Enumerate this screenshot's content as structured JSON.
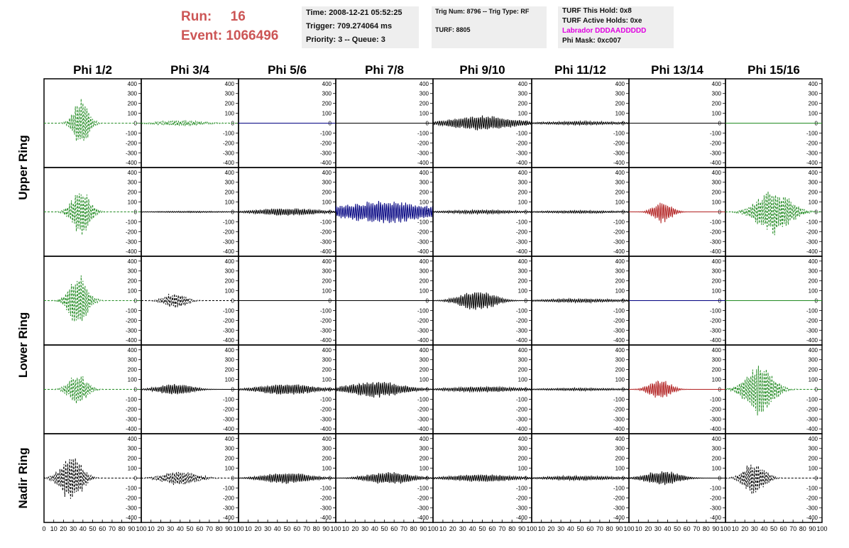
{
  "header": {
    "run_label": "Run:",
    "run_value": "16",
    "event_label": "Event:",
    "event_value": "1066496",
    "time": "Time: 2008-12-21 05:52:25",
    "trigger": "Trigger: 709.274064 ms",
    "priority": "Priority: 3 -- Queue: 3",
    "trig_num": "Trig Num: 8796 -- Trig Type: RF",
    "turf": "TURF: 8805",
    "turf_hold": "TURF This Hold: 0x8",
    "turf_active": "TURF Active Holds: 0xe",
    "labrador": "Labrador DDDAADDDDD",
    "phi_mask": "Phi Mask: 0xc007",
    "labrador_color": "#e000e0",
    "run_color": "#cc5555"
  },
  "columns": [
    "Phi 1/2",
    "Phi 3/4",
    "Phi 5/6",
    "Phi 7/8",
    "Phi 9/10",
    "Phi 11/12",
    "Phi 13/14",
    "Phi 15/16"
  ],
  "ring_labels": [
    "Upper Ring",
    "Lower Ring",
    "Nadir Ring"
  ],
  "chart_data": {
    "type": "line",
    "title": "",
    "xlim": [
      0,
      100
    ],
    "ylim": [
      -420,
      420
    ],
    "x_ticks": [
      "0",
      "10",
      "20",
      "30",
      "40",
      "50",
      "60",
      "70",
      "80",
      "90",
      "100"
    ],
    "y_ticks": [
      "400",
      "300",
      "200",
      "100",
      "0",
      "-100",
      "-200",
      "-300",
      "-400"
    ],
    "rows": [
      {
        "ring": "Upper Ring",
        "panels": [
          {
            "color": "#228b22",
            "dashed": true,
            "amp": 260,
            "center": 38,
            "width": 10
          },
          {
            "color": "#228b22",
            "dashed": true,
            "amp": 30,
            "center": 40,
            "width": 30
          },
          {
            "color": "#000080",
            "dashed": false,
            "amp": 0,
            "center": 50,
            "width": 30
          },
          {
            "color": "#000000",
            "dashed": false,
            "amp": 0,
            "center": 50,
            "width": 30
          },
          {
            "color": "#000000",
            "dashed": false,
            "amp": 80,
            "center": 50,
            "width": 40
          },
          {
            "color": "#000000",
            "dashed": false,
            "amp": 20,
            "center": 50,
            "width": 50
          },
          {
            "color": "#000000",
            "dashed": false,
            "amp": 0,
            "center": 50,
            "width": 30
          },
          {
            "color": "#228b22",
            "dashed": false,
            "amp": 0,
            "center": 50,
            "width": 30
          }
        ]
      },
      {
        "ring": "Upper Ring",
        "panels": [
          {
            "color": "#228b22",
            "dashed": true,
            "amp": 250,
            "center": 38,
            "width": 12
          },
          {
            "color": "#000000",
            "dashed": false,
            "amp": 8,
            "center": 50,
            "width": 50
          },
          {
            "color": "#000000",
            "dashed": false,
            "amp": 40,
            "center": 50,
            "width": 40
          },
          {
            "color": "#000080",
            "dashed": false,
            "amp": 120,
            "center": 50,
            "width": 60
          },
          {
            "color": "#000000",
            "dashed": false,
            "amp": 20,
            "center": 50,
            "width": 50
          },
          {
            "color": "#000000",
            "dashed": false,
            "amp": 15,
            "center": 50,
            "width": 50
          },
          {
            "color": "#b22222",
            "dashed": false,
            "amp": 120,
            "center": 35,
            "width": 12
          },
          {
            "color": "#228b22",
            "dashed": true,
            "amp": 250,
            "center": 50,
            "width": 22
          }
        ]
      },
      {
        "ring": "Lower Ring",
        "panels": [
          {
            "color": "#228b22",
            "dashed": true,
            "amp": 290,
            "center": 35,
            "width": 12
          },
          {
            "color": "#000000",
            "dashed": true,
            "amp": 90,
            "center": 35,
            "width": 14
          },
          {
            "color": "#000000",
            "dashed": false,
            "amp": 0,
            "center": 50,
            "width": 30
          },
          {
            "color": "#000000",
            "dashed": false,
            "amp": 0,
            "center": 50,
            "width": 30
          },
          {
            "color": "#000000",
            "dashed": false,
            "amp": 110,
            "center": 45,
            "width": 22
          },
          {
            "color": "#000000",
            "dashed": false,
            "amp": 20,
            "center": 50,
            "width": 50
          },
          {
            "color": "#000080",
            "dashed": false,
            "amp": 0,
            "center": 50,
            "width": 30
          },
          {
            "color": "#228b22",
            "dashed": false,
            "amp": 0,
            "center": 50,
            "width": 30
          }
        ]
      },
      {
        "ring": "Lower Ring",
        "panels": [
          {
            "color": "#228b22",
            "dashed": true,
            "amp": 170,
            "center": 35,
            "width": 12
          },
          {
            "color": "#000000",
            "dashed": false,
            "amp": 60,
            "center": 35,
            "width": 22
          },
          {
            "color": "#000000",
            "dashed": false,
            "amp": 60,
            "center": 50,
            "width": 35
          },
          {
            "color": "#000000",
            "dashed": false,
            "amp": 90,
            "center": 40,
            "width": 35
          },
          {
            "color": "#000000",
            "dashed": false,
            "amp": 30,
            "center": 50,
            "width": 45
          },
          {
            "color": "#000000",
            "dashed": false,
            "amp": 15,
            "center": 50,
            "width": 50
          },
          {
            "color": "#b22222",
            "dashed": false,
            "amp": 110,
            "center": 32,
            "width": 14
          },
          {
            "color": "#228b22",
            "dashed": true,
            "amp": 280,
            "center": 35,
            "width": 18
          }
        ]
      },
      {
        "ring": "Nadir Ring",
        "panels": [
          {
            "color": "#000000",
            "dashed": true,
            "amp": 260,
            "center": 28,
            "width": 14
          },
          {
            "color": "#000000",
            "dashed": true,
            "amp": 80,
            "center": 40,
            "width": 22
          },
          {
            "color": "#000000",
            "dashed": false,
            "amp": 60,
            "center": 50,
            "width": 30
          },
          {
            "color": "#000000",
            "dashed": false,
            "amp": 70,
            "center": 55,
            "width": 28
          },
          {
            "color": "#000000",
            "dashed": false,
            "amp": 40,
            "center": 50,
            "width": 40
          },
          {
            "color": "#000000",
            "dashed": false,
            "amp": 25,
            "center": 50,
            "width": 45
          },
          {
            "color": "#000000",
            "dashed": false,
            "amp": 80,
            "center": 35,
            "width": 22
          },
          {
            "color": "#000000",
            "dashed": true,
            "amp": 180,
            "center": 30,
            "width": 14
          }
        ]
      }
    ]
  }
}
